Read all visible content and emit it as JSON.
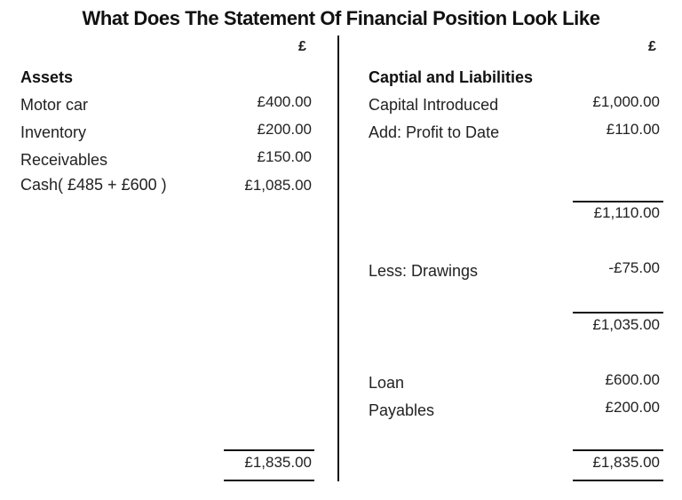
{
  "title": "What Does The Statement Of Financial Position Look Like",
  "currency_symbol": "£",
  "assets": {
    "heading": "Assets",
    "rows": [
      {
        "label": "Motor car",
        "value": "£400.00"
      },
      {
        "label": "Inventory",
        "value": "£200.00"
      },
      {
        "label": "Receivables",
        "value": "£150.00"
      },
      {
        "label": "Cash( £485 + £600 )",
        "value": "£1,085.00"
      }
    ],
    "total": "£1,835.00"
  },
  "liabilities": {
    "heading": "Captial and Liabilities",
    "capital_introduced": {
      "label": "Capital Introduced",
      "value": "£1,000.00"
    },
    "profit": {
      "label": "Add: Profit to Date",
      "value": "£110.00"
    },
    "subtotal_1": "£1,110.00",
    "drawings": {
      "label": "Less: Drawings",
      "value": "-£75.00"
    },
    "subtotal_2": "£1,035.00",
    "loan": {
      "label": "Loan",
      "value": "£600.00"
    },
    "payables": {
      "label": "Payables",
      "value": "£200.00"
    },
    "total": "£1,835.00"
  }
}
